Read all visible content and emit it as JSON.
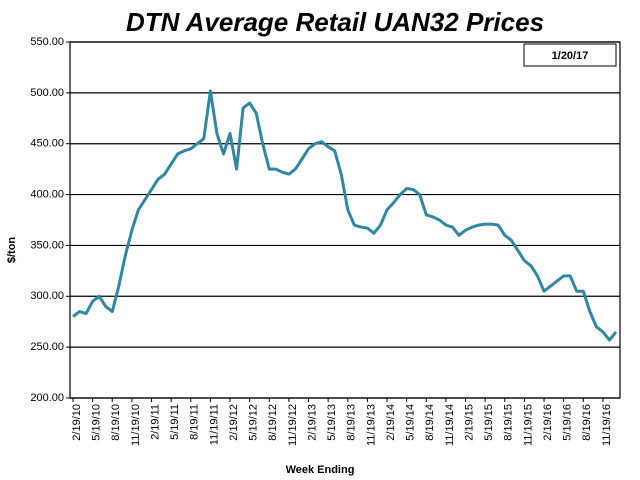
{
  "chart_data": {
    "type": "line",
    "title": "DTN Average Retail UAN32 Prices",
    "annotation": "1/20/17",
    "x_label": "Week Ending",
    "y_label": "$/ton",
    "categories": [
      "2/19/10",
      null,
      null,
      "5/19/10",
      null,
      null,
      "8/19/10",
      null,
      null,
      "11/19/10",
      null,
      null,
      "2/19/11",
      null,
      null,
      "5/19/11",
      null,
      null,
      "8/19/11",
      null,
      null,
      "11/19/11",
      null,
      null,
      "2/19/12",
      null,
      null,
      "5/19/12",
      null,
      null,
      "8/19/12",
      null,
      null,
      "11/19/12",
      null,
      null,
      "2/19/13",
      null,
      null,
      "5/19/13",
      null,
      null,
      "8/19/13",
      null,
      null,
      "11/19/13",
      null,
      null,
      "2/19/14",
      null,
      null,
      "5/19/14",
      null,
      null,
      "8/19/14",
      null,
      null,
      "11/19/14",
      null,
      null,
      "2/19/15",
      null,
      null,
      "5/19/15",
      null,
      null,
      "8/19/15",
      null,
      null,
      "11/19/15",
      null,
      null,
      "2/19/16",
      null,
      null,
      "5/19/16",
      null,
      null,
      "8/19/16",
      null,
      null,
      "11/19/16",
      null,
      null
    ],
    "series": [
      {
        "name": "UAN32",
        "color": "#2f87a1",
        "values": [
          280,
          285,
          283,
          295,
          300,
          290,
          285,
          310,
          340,
          365,
          385,
          395,
          405,
          415,
          420,
          430,
          440,
          443,
          445,
          450,
          455,
          502,
          460,
          440,
          460,
          425,
          485,
          490,
          480,
          450,
          425,
          425,
          422,
          420,
          425,
          435,
          445,
          450,
          452,
          447,
          443,
          420,
          385,
          370,
          368,
          367,
          362,
          370,
          385,
          392,
          400,
          406,
          405,
          400,
          380,
          378,
          375,
          370,
          368,
          360,
          365,
          368,
          370,
          371,
          371,
          370,
          360,
          355,
          345,
          335,
          330,
          320,
          305,
          310,
          315,
          320,
          320,
          305,
          305,
          285,
          270,
          265,
          257,
          265
        ]
      }
    ],
    "ylim": [
      200,
      550
    ],
    "yticks": [
      {
        "value": 200,
        "label": "200.00"
      },
      {
        "value": 250,
        "label": "250.00"
      },
      {
        "value": 300,
        "label": "300.00"
      },
      {
        "value": 350,
        "label": "350.00"
      },
      {
        "value": 400,
        "label": "400.00"
      },
      {
        "value": 450,
        "label": "450.00"
      },
      {
        "value": 500,
        "label": "500.00"
      },
      {
        "value": 550,
        "label": "550.00"
      }
    ],
    "grid": true
  }
}
